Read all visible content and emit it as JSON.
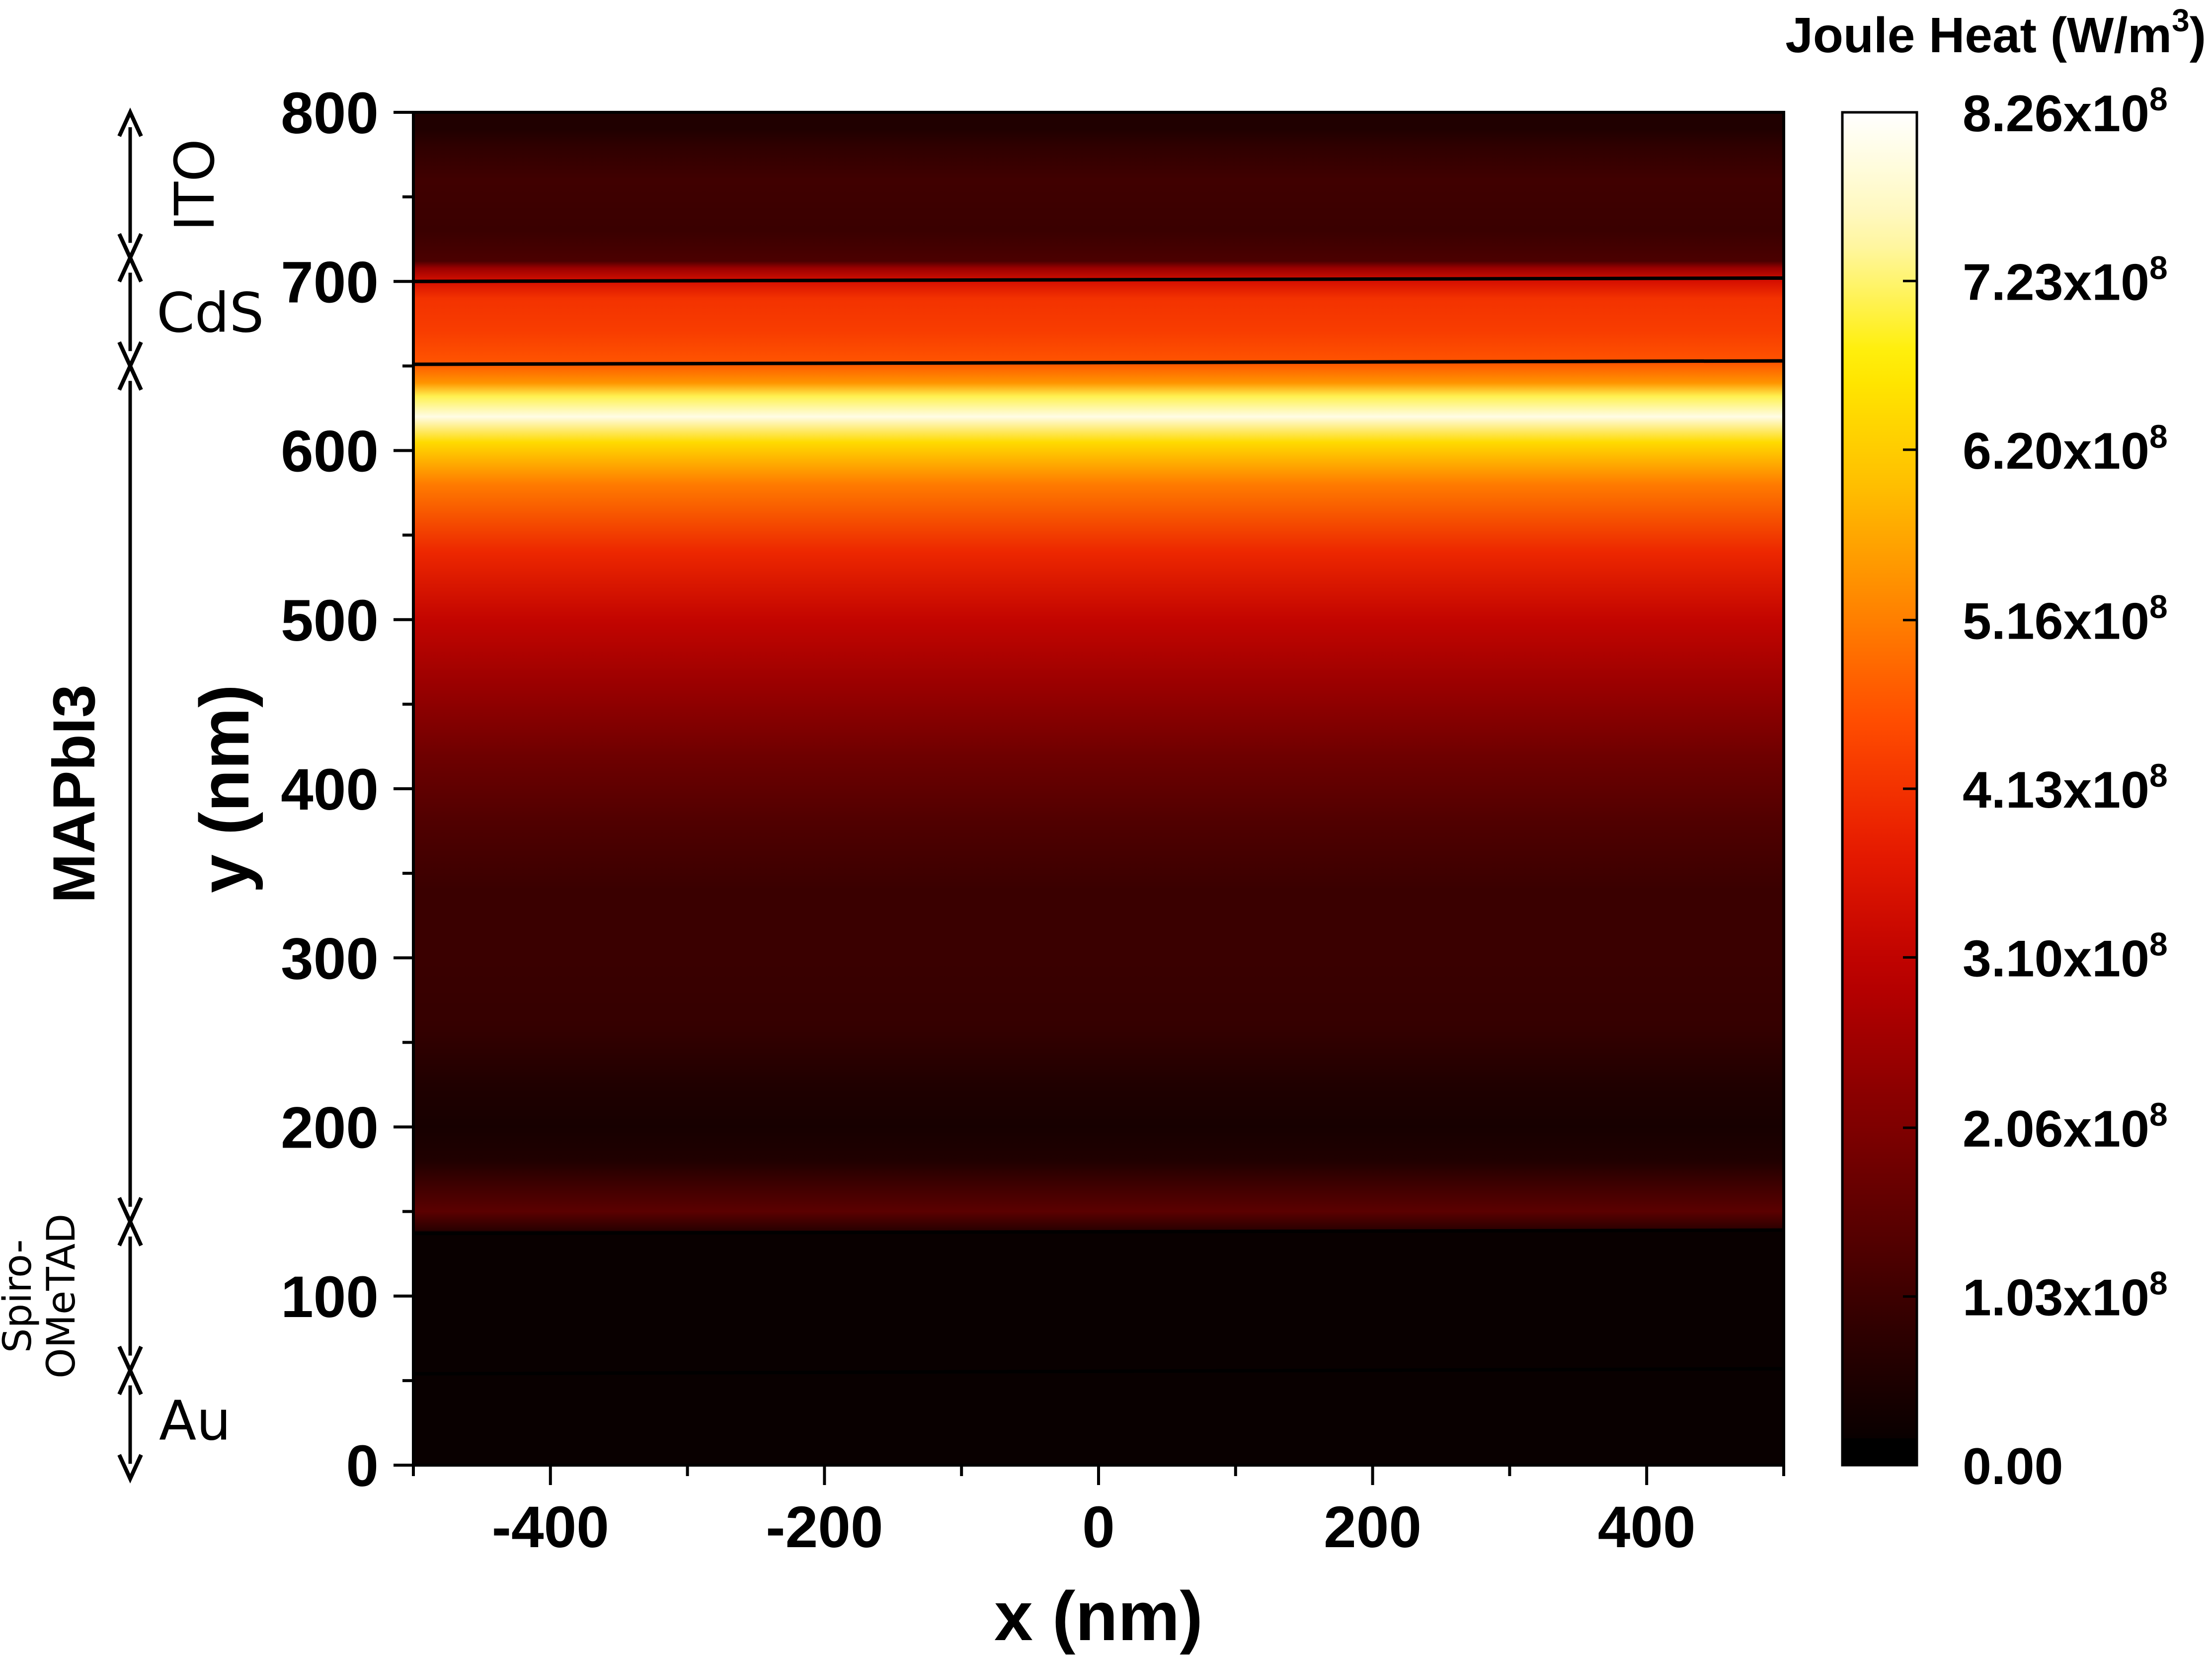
{
  "chart_data": {
    "type": "heatmap",
    "title": "",
    "xlabel": "x (nm)",
    "ylabel": "y (nm)",
    "xlim": [
      -500,
      500
    ],
    "ylim": [
      0,
      800
    ],
    "x_ticks": [
      "-400",
      "-200",
      "0",
      "200",
      "400"
    ],
    "x_tick_values": [
      -400,
      -200,
      0,
      200,
      400
    ],
    "y_ticks": [
      "0",
      "100",
      "200",
      "300",
      "400",
      "500",
      "600",
      "700",
      "800"
    ],
    "y_tick_values": [
      0,
      100,
      200,
      300,
      400,
      500,
      600,
      700,
      800
    ],
    "colorbar": {
      "title_main": "Joule Heat (W/m",
      "title_sup": "3",
      "title_end": ")",
      "min": 0,
      "max": 826000000,
      "labels": [
        {
          "value": 826000000,
          "mantissa": "8.26x10",
          "exp": "8"
        },
        {
          "value": 723000000,
          "mantissa": "7.23x10",
          "exp": "8"
        },
        {
          "value": 620000000,
          "mantissa": "6.20x10",
          "exp": "8"
        },
        {
          "value": 516000000,
          "mantissa": "5.16x10",
          "exp": "8"
        },
        {
          "value": 413000000,
          "mantissa": "4.13x10",
          "exp": "8"
        },
        {
          "value": 310000000,
          "mantissa": "3.10x10",
          "exp": "8"
        },
        {
          "value": 206000000,
          "mantissa": "2.06x10",
          "exp": "8"
        },
        {
          "value": 103000000,
          "mantissa": "1.03x10",
          "exp": "8"
        },
        {
          "value": 0,
          "mantissa": "0.00",
          "exp": ""
        }
      ]
    },
    "profile": [
      {
        "y": 0,
        "v": 0.02
      },
      {
        "y": 55,
        "v": 0.02
      },
      {
        "y": 56,
        "v": 0.02
      },
      {
        "y": 138,
        "v": 0.02
      },
      {
        "y": 139,
        "v": 0.09
      },
      {
        "y": 150,
        "v": 0.18
      },
      {
        "y": 162,
        "v": 0.14
      },
      {
        "y": 180,
        "v": 0.07
      },
      {
        "y": 200,
        "v": 0.05
      },
      {
        "y": 225,
        "v": 0.07
      },
      {
        "y": 260,
        "v": 0.11
      },
      {
        "y": 300,
        "v": 0.12
      },
      {
        "y": 340,
        "v": 0.12
      },
      {
        "y": 380,
        "v": 0.16
      },
      {
        "y": 420,
        "v": 0.22
      },
      {
        "y": 460,
        "v": 0.3
      },
      {
        "y": 500,
        "v": 0.38
      },
      {
        "y": 540,
        "v": 0.48
      },
      {
        "y": 580,
        "v": 0.62
      },
      {
        "y": 605,
        "v": 0.78
      },
      {
        "y": 620,
        "v": 0.97
      },
      {
        "y": 632,
        "v": 0.86
      },
      {
        "y": 640,
        "v": 0.66
      },
      {
        "y": 652,
        "v": 0.56
      },
      {
        "y": 670,
        "v": 0.52
      },
      {
        "y": 690,
        "v": 0.5
      },
      {
        "y": 700,
        "v": 0.42
      },
      {
        "y": 708,
        "v": 0.3
      },
      {
        "y": 712,
        "v": 0.15
      },
      {
        "y": 730,
        "v": 0.12
      },
      {
        "y": 760,
        "v": 0.13
      },
      {
        "y": 780,
        "v": 0.1
      },
      {
        "y": 790,
        "v": 0.07
      },
      {
        "y": 800,
        "v": 0.07
      }
    ],
    "interfaces": [
      {
        "y_left": 700,
        "y_right": 702
      },
      {
        "y_left": 651,
        "y_right": 653
      },
      {
        "y_left": 137,
        "y_right": 139
      },
      {
        "y_left": 54,
        "y_right": 57
      }
    ],
    "layers": [
      {
        "name": "ITO",
        "y_top": 800,
        "y_bottom": 714
      },
      {
        "name": "CdS",
        "y_top": 714,
        "y_bottom": 650
      },
      {
        "name": "MAPbI3",
        "y_top": 650,
        "y_bottom": 144
      },
      {
        "name_line1": "Spiro-",
        "name_line2": "OMeTAD",
        "y_top": 144,
        "y_bottom": 56
      },
      {
        "name": "Au",
        "y_top": 56,
        "y_bottom": -8
      }
    ]
  },
  "colors": {
    "colormap": [
      "#000000",
      "#2a0000",
      "#5c0000",
      "#8a0000",
      "#bb0000",
      "#e61a00",
      "#ff4a00",
      "#ff8600",
      "#ffc000",
      "#ffee00",
      "#fff7b0",
      "#ffffff"
    ],
    "axis": "#000000"
  }
}
